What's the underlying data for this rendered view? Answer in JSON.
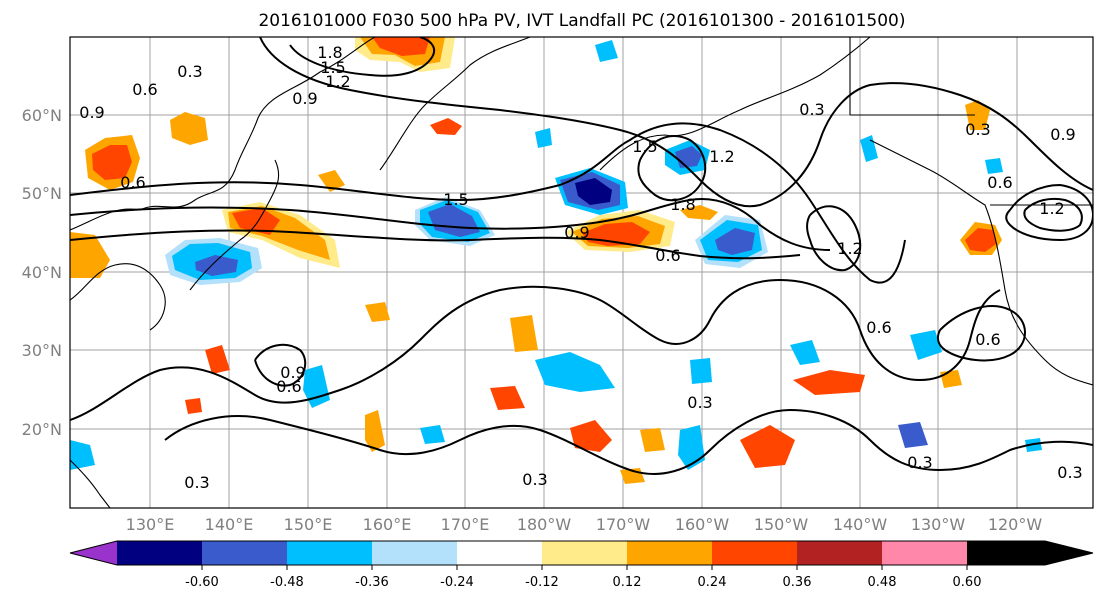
{
  "title": "2016101000 F030 500 hPa PV, IVT Landfall PC (2016101300 - 2016101500)",
  "axes": {
    "lon_ticks": [
      "130°E",
      "140°E",
      "150°E",
      "160°E",
      "170°E",
      "180°W",
      "170°W",
      "160°W",
      "150°W",
      "140°W",
      "130°W",
      "120°W"
    ],
    "lat_ticks": [
      "60°N",
      "50°N",
      "40°N",
      "30°N",
      "20°N"
    ]
  },
  "colorbar": {
    "colors": [
      "#9933cc",
      "#000080",
      "#3a5bcc",
      "#00bfff",
      "#b3e0fa",
      "#ffffff",
      "#ffeb8a",
      "#ffa500",
      "#ff4500",
      "#b22222",
      "#ff88aa"
    ],
    "tick_labels": [
      "-0.60",
      "-0.48",
      "-0.36",
      "-0.24",
      "-0.12",
      "0.12",
      "0.24",
      "0.36",
      "0.48",
      "0.60"
    ]
  },
  "contour_labels": [
    "1.8",
    "1.5",
    "1.2",
    "0.9",
    "0.3",
    "0.6",
    "0.9",
    "0.6",
    "1.5",
    "1.2",
    "1.5",
    "1.8",
    "0.9",
    "0.6",
    "1.2",
    "0.3",
    "0.6",
    "0.6",
    "0.3",
    "0.3",
    "0.3",
    "0.3",
    "0.3",
    "0.9",
    "0.6",
    "0.6",
    "0.3",
    "0.9",
    "1.2"
  ]
}
